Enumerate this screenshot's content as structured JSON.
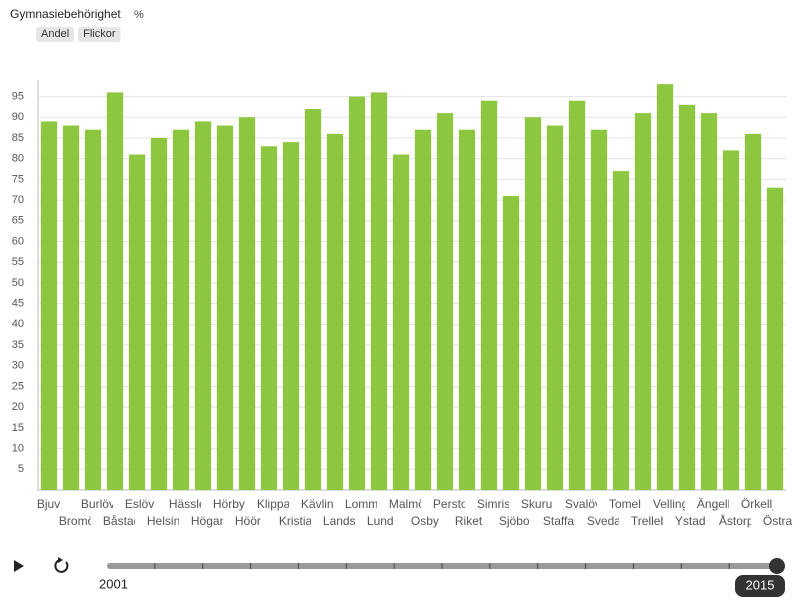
{
  "chart_data": {
    "type": "bar",
    "title": "Gymnasiebehörighet",
    "unit": "%",
    "categories": [
      "Bjuv",
      "Bromölla",
      "Burlöv",
      "Båstad",
      "Eslöv",
      "Helsingborg",
      "Hässleholm",
      "Höganäs",
      "Hörby",
      "Höör",
      "Klippan",
      "Kristianstad",
      "Kävlinge",
      "Landskrona",
      "Lomma",
      "Lund",
      "Malmö",
      "Osby",
      "Perstorp",
      "Riket",
      "Simrishamn",
      "Sjöbo",
      "Skurup",
      "Staffanstorp",
      "Svalöv",
      "Svedala",
      "Tomelilla",
      "Trelleborg",
      "Vellinge",
      "Ystad",
      "Ängelholm",
      "Åstorp",
      "Örkelljunga",
      "Östra Göinge"
    ],
    "values": [
      89,
      88,
      87,
      96,
      81,
      85,
      87,
      89,
      88,
      90,
      83,
      84,
      92,
      86,
      95,
      96,
      81,
      87,
      91,
      87,
      94,
      71,
      90,
      88,
      94,
      87,
      77,
      91,
      98,
      93,
      91,
      82,
      86,
      73
    ],
    "color": "#8dc63f",
    "ylim": [
      0,
      99
    ],
    "yticks": [
      5,
      10,
      15,
      20,
      25,
      30,
      35,
      40,
      45,
      50,
      55,
      60,
      65,
      70,
      75,
      80,
      85,
      90,
      95
    ],
    "grid": true
  },
  "filters": [
    "Andel",
    "Flickor"
  ],
  "slider": {
    "min": 2001,
    "max": 2015,
    "value": 2015
  }
}
